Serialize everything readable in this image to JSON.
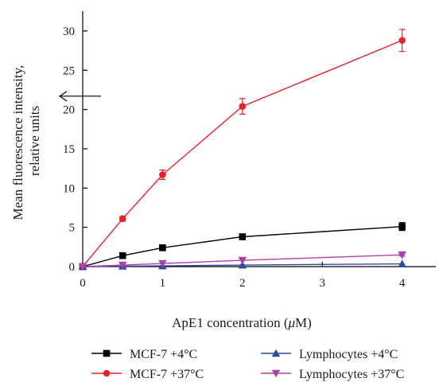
{
  "chart_data": {
    "type": "line",
    "xlabel_main": "ApE1 concentration (",
    "xlabel_mu": "μ",
    "xlabel_end": "M)",
    "ylabel_line1": "Mean fluorescence intensity,",
    "ylabel_line2": "relative units",
    "xlim": [
      0,
      4.4
    ],
    "ylim": [
      -1,
      32.5
    ],
    "x_ticks": [
      0,
      1,
      2,
      3,
      4
    ],
    "y_ticks": [
      0,
      5,
      10,
      15,
      20,
      25,
      30
    ],
    "x_tick_labels": [
      "0",
      "1",
      "2",
      "3",
      "4"
    ],
    "y_tick_labels": [
      "0",
      "5",
      "10",
      "15",
      "20",
      "25",
      "30"
    ],
    "grid": false,
    "legend_position": "bottom",
    "annotation": {
      "type": "arrow",
      "points_to": "y-axis",
      "y": 21.7
    },
    "series": [
      {
        "name": "MCF-7 +4°C",
        "color": "#000000",
        "marker": "square",
        "x": [
          0,
          0.5,
          1,
          2,
          4
        ],
        "y": [
          0,
          1.4,
          2.4,
          3.8,
          5.1
        ],
        "error": [
          0,
          0.15,
          0.2,
          0.3,
          0.5
        ]
      },
      {
        "name": "MCF-7 +37°C",
        "color": "#e8202a",
        "marker": "circle",
        "x": [
          0,
          0.5,
          1,
          2,
          4
        ],
        "y": [
          0,
          6.1,
          11.7,
          20.4,
          28.8
        ],
        "error": [
          0,
          0.3,
          0.6,
          1.0,
          1.4
        ]
      },
      {
        "name": "Lymphocytes +4°C",
        "color": "#2b4a9c",
        "marker": "triangle-up",
        "x": [
          0,
          0.5,
          1,
          2,
          4
        ],
        "y": [
          0,
          0.05,
          0.1,
          0.2,
          0.35
        ],
        "error": [
          0,
          0.05,
          0.05,
          0.05,
          0.1
        ]
      },
      {
        "name": "Lymphocytes +37°C",
        "color": "#b040a8",
        "marker": "triangle-down",
        "x": [
          0,
          0.5,
          1,
          2,
          4
        ],
        "y": [
          0,
          0.2,
          0.4,
          0.8,
          1.5
        ],
        "error": [
          0,
          0.05,
          0.1,
          0.1,
          0.15
        ]
      }
    ]
  }
}
